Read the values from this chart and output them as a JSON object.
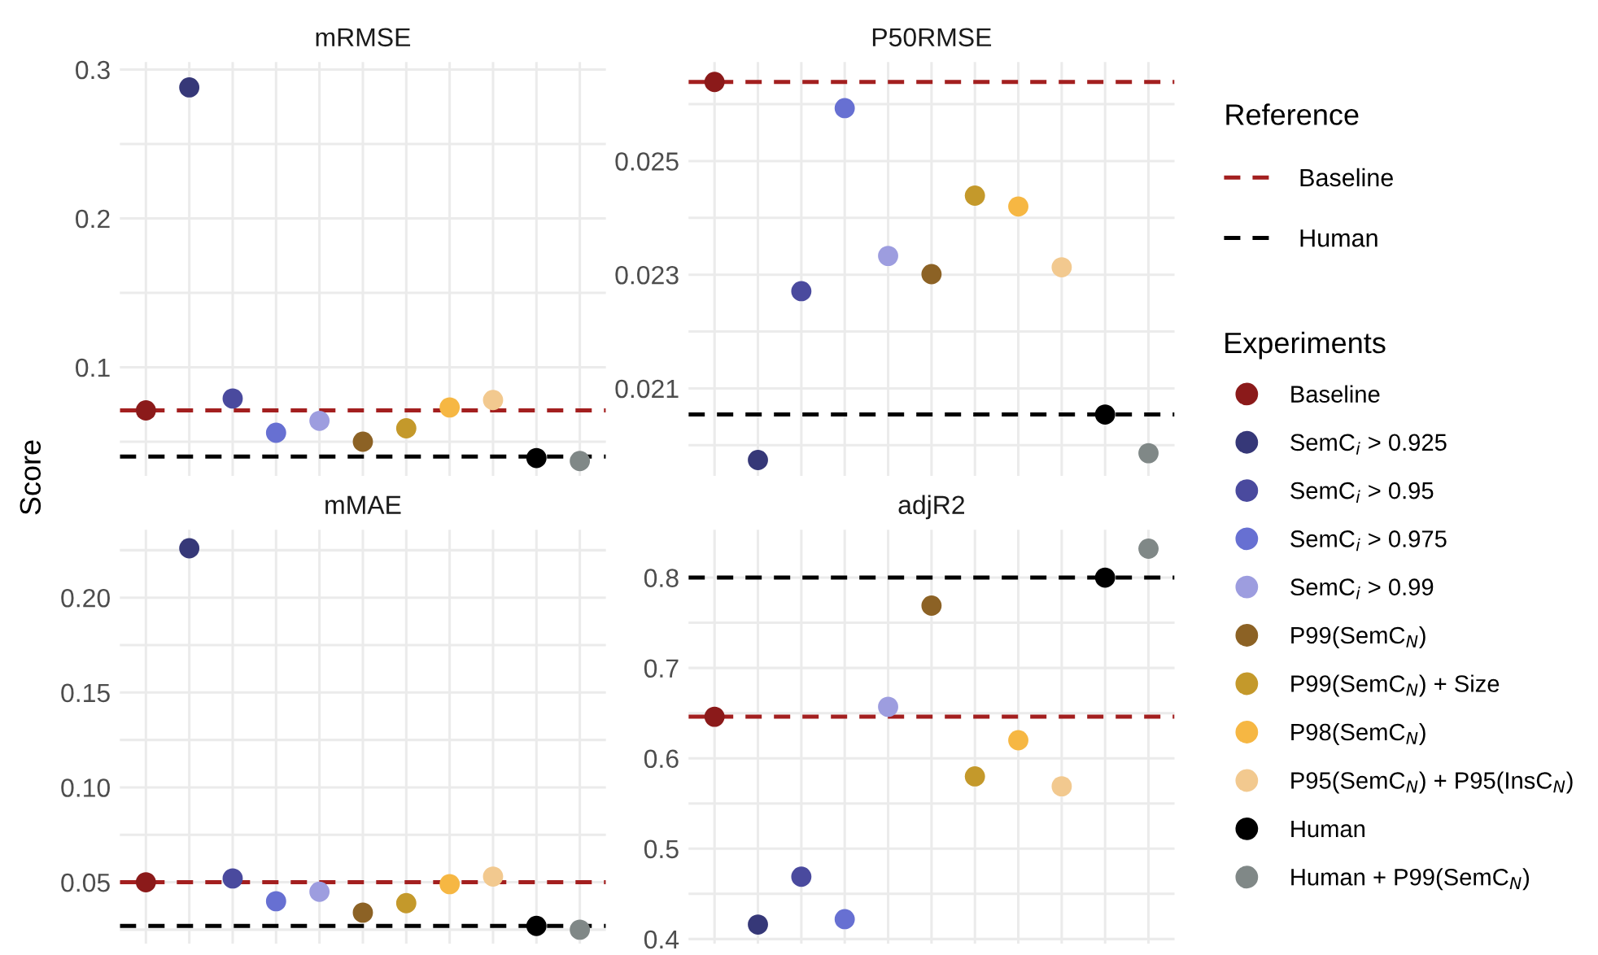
{
  "chart_data": [
    {
      "type": "scatter",
      "title": "mRMSE",
      "ylabel": "Score",
      "legend_title": "Experiments",
      "annotations": [
        "Reference"
      ],
      "legend": "right",
      "grid": true,
      "marker": "circle",
      "tick_labels": "y",
      "categories": [
        null,
        null,
        null,
        null,
        null,
        null,
        null,
        null,
        null,
        null,
        null
      ],
      "ylim": [
        0.027,
        0.305
      ],
      "yticks": [
        {
          "value": 0.05,
          "label": null
        },
        0.1,
        {
          "value": 0.15,
          "label": null
        },
        0.2,
        {
          "value": 0.25,
          "label": null
        },
        0.3
      ],
      "ref_lines": [
        {
          "axis": "y",
          "value": 0.071,
          "label": "Baseline",
          "color": "#a31f1f",
          "line_style": "dashed"
        },
        {
          "axis": "y",
          "value": 0.04,
          "label": "Human",
          "color": "#000000",
          "line_style": "dashed"
        }
      ],
      "series": [
        {
          "name": "Baseline",
          "color": "#8b1a1a",
          "values": [
            0.071,
            null,
            null,
            null,
            null,
            null,
            null,
            null,
            null,
            null,
            null
          ]
        },
        {
          "name": "SemC$_{i}$ > 0.925",
          "color": "#363878",
          "values": [
            null,
            0.288,
            null,
            null,
            null,
            null,
            null,
            null,
            null,
            null,
            null
          ]
        },
        {
          "name": "SemC$_{i}$ > 0.95",
          "color": "#4a4a9e",
          "values": [
            null,
            null,
            0.079,
            null,
            null,
            null,
            null,
            null,
            null,
            null,
            null
          ]
        },
        {
          "name": "SemC$_{i}$ > 0.975",
          "color": "#6770d2",
          "values": [
            null,
            null,
            null,
            0.056,
            null,
            null,
            null,
            null,
            null,
            null,
            null
          ]
        },
        {
          "name": "SemC$_{i}$ > 0.99",
          "color": "#9d9ddf",
          "values": [
            null,
            null,
            null,
            null,
            0.064,
            null,
            null,
            null,
            null,
            null,
            null
          ]
        },
        {
          "name": "P99(SemC$_{N}$)",
          "color": "#8c6225",
          "values": [
            null,
            null,
            null,
            null,
            null,
            0.05,
            null,
            null,
            null,
            null,
            null
          ]
        },
        {
          "name": "P99(SemC$_{N}$) + Size",
          "color": "#c4992b",
          "values": [
            null,
            null,
            null,
            null,
            null,
            null,
            0.059,
            null,
            null,
            null,
            null
          ]
        },
        {
          "name": "P98(SemC$_{N}$)",
          "color": "#f6b743",
          "values": [
            null,
            null,
            null,
            null,
            null,
            null,
            null,
            0.073,
            null,
            null,
            null
          ]
        },
        {
          "name": "P95(SemC$_{N}$) + P95(InsC$_{N}$)",
          "color": "#f2c98f",
          "values": [
            null,
            null,
            null,
            null,
            null,
            null,
            null,
            null,
            0.078,
            null,
            null
          ]
        },
        {
          "name": "Human",
          "color": "#000000",
          "values": [
            null,
            null,
            null,
            null,
            null,
            null,
            null,
            null,
            null,
            0.039,
            null
          ]
        },
        {
          "name": "Human + P99(SemC$_{N}$)",
          "color": "#808887",
          "values": [
            null,
            null,
            null,
            null,
            null,
            null,
            null,
            null,
            null,
            null,
            0.037
          ]
        }
      ]
    },
    {
      "type": "scatter",
      "title": "P50RMSE",
      "grid": true,
      "marker": "circle",
      "tick_labels": "y",
      "categories": [
        null,
        null,
        null,
        null,
        null,
        null,
        null,
        null,
        null,
        null,
        null
      ],
      "ylim": [
        0.01946,
        0.02674
      ],
      "yticks": [
        {
          "value": 0.02,
          "label": null
        },
        0.021,
        {
          "value": 0.022,
          "label": null
        },
        0.023,
        {
          "value": 0.024,
          "label": null
        },
        0.025,
        {
          "value": 0.026,
          "label": null
        }
      ],
      "ref_lines": [
        {
          "axis": "y",
          "value": 0.02639,
          "color": "#a31f1f",
          "line_style": "dashed"
        },
        {
          "axis": "y",
          "value": 0.02054,
          "color": "#000000",
          "line_style": "dashed"
        }
      ],
      "series": [
        {
          "color": "#8b1a1a",
          "values": [
            0.02639,
            null,
            null,
            null,
            null,
            null,
            null,
            null,
            null,
            null,
            null
          ]
        },
        {
          "color": "#363878",
          "values": [
            null,
            0.01974,
            null,
            null,
            null,
            null,
            null,
            null,
            null,
            null,
            null
          ]
        },
        {
          "color": "#4a4a9e",
          "values": [
            null,
            null,
            0.02271,
            null,
            null,
            null,
            null,
            null,
            null,
            null,
            null
          ]
        },
        {
          "color": "#6770d2",
          "values": [
            null,
            null,
            null,
            0.02593,
            null,
            null,
            null,
            null,
            null,
            null,
            null
          ]
        },
        {
          "color": "#9d9ddf",
          "values": [
            null,
            null,
            null,
            null,
            0.02333,
            null,
            null,
            null,
            null,
            null,
            null
          ]
        },
        {
          "color": "#8c6225",
          "values": [
            null,
            null,
            null,
            null,
            null,
            0.02301,
            null,
            null,
            null,
            null,
            null
          ]
        },
        {
          "color": "#c4992b",
          "values": [
            null,
            null,
            null,
            null,
            null,
            null,
            0.02439,
            null,
            null,
            null,
            null
          ]
        },
        {
          "color": "#f6b743",
          "values": [
            null,
            null,
            null,
            null,
            null,
            null,
            null,
            0.0242,
            null,
            null,
            null
          ]
        },
        {
          "color": "#f2c98f",
          "values": [
            null,
            null,
            null,
            null,
            null,
            null,
            null,
            null,
            0.02313,
            null,
            null
          ]
        },
        {
          "color": "#000000",
          "values": [
            null,
            null,
            null,
            null,
            null,
            null,
            null,
            null,
            null,
            0.02054,
            null
          ]
        },
        {
          "color": "#808887",
          "values": [
            null,
            null,
            null,
            null,
            null,
            null,
            null,
            null,
            null,
            null,
            0.01986
          ]
        }
      ]
    },
    {
      "type": "scatter",
      "title": "mMAE",
      "grid": true,
      "marker": "circle",
      "tick_labels": "y",
      "categories": [
        null,
        null,
        null,
        null,
        null,
        null,
        null,
        null,
        null,
        null,
        null
      ],
      "ylim": [
        0.0177,
        0.2358
      ],
      "yticks": [
        {
          "value": 0.025,
          "label": null
        },
        0.05,
        {
          "value": 0.075,
          "label": null
        },
        {
          "value": 0.1,
          "label": "0.10"
        },
        {
          "value": 0.125,
          "label": null
        },
        0.15,
        {
          "value": 0.175,
          "label": null
        },
        {
          "value": 0.2,
          "label": "0.20"
        },
        {
          "value": 0.225,
          "label": null
        }
      ],
      "ref_lines": [
        {
          "axis": "y",
          "value": 0.05,
          "color": "#a31f1f",
          "line_style": "dashed"
        },
        {
          "axis": "y",
          "value": 0.027,
          "color": "#000000",
          "line_style": "dashed"
        }
      ],
      "series": [
        {
          "color": "#8b1a1a",
          "values": [
            0.05,
            null,
            null,
            null,
            null,
            null,
            null,
            null,
            null,
            null,
            null
          ]
        },
        {
          "color": "#363878",
          "values": [
            null,
            0.226,
            null,
            null,
            null,
            null,
            null,
            null,
            null,
            null,
            null
          ]
        },
        {
          "color": "#4a4a9e",
          "values": [
            null,
            null,
            0.052,
            null,
            null,
            null,
            null,
            null,
            null,
            null,
            null
          ]
        },
        {
          "color": "#6770d2",
          "values": [
            null,
            null,
            null,
            0.04,
            null,
            null,
            null,
            null,
            null,
            null,
            null
          ]
        },
        {
          "color": "#9d9ddf",
          "values": [
            null,
            null,
            null,
            null,
            0.045,
            null,
            null,
            null,
            null,
            null,
            null
          ]
        },
        {
          "color": "#8c6225",
          "values": [
            null,
            null,
            null,
            null,
            null,
            0.034,
            null,
            null,
            null,
            null,
            null
          ]
        },
        {
          "color": "#c4992b",
          "values": [
            null,
            null,
            null,
            null,
            null,
            null,
            0.039,
            null,
            null,
            null,
            null
          ]
        },
        {
          "color": "#f6b743",
          "values": [
            null,
            null,
            null,
            null,
            null,
            null,
            null,
            0.049,
            null,
            null,
            null
          ]
        },
        {
          "color": "#f2c98f",
          "values": [
            null,
            null,
            null,
            null,
            null,
            null,
            null,
            null,
            0.053,
            null,
            null
          ]
        },
        {
          "color": "#000000",
          "values": [
            null,
            null,
            null,
            null,
            null,
            null,
            null,
            null,
            null,
            0.027,
            null
          ]
        },
        {
          "color": "#808887",
          "values": [
            null,
            null,
            null,
            null,
            null,
            null,
            null,
            null,
            null,
            null,
            0.025
          ]
        }
      ]
    },
    {
      "type": "scatter",
      "title": "adjR2",
      "grid": true,
      "marker": "circle",
      "tick_labels": "y",
      "categories": [
        null,
        null,
        null,
        null,
        null,
        null,
        null,
        null,
        null,
        null,
        null
      ],
      "ylim": [
        0.395,
        0.853
      ],
      "yticks": [
        0.4,
        {
          "value": 0.45,
          "label": null
        },
        0.5,
        {
          "value": 0.55,
          "label": null
        },
        0.6,
        {
          "value": 0.65,
          "label": null
        },
        0.7,
        {
          "value": 0.75,
          "label": null
        },
        0.8
      ],
      "ref_lines": [
        {
          "axis": "y",
          "value": 0.646,
          "color": "#a31f1f",
          "line_style": "dashed"
        },
        {
          "axis": "y",
          "value": 0.8,
          "color": "#000000",
          "line_style": "dashed"
        }
      ],
      "series": [
        {
          "color": "#8b1a1a",
          "values": [
            0.646,
            null,
            null,
            null,
            null,
            null,
            null,
            null,
            null,
            null,
            null
          ]
        },
        {
          "color": "#363878",
          "values": [
            null,
            0.416,
            null,
            null,
            null,
            null,
            null,
            null,
            null,
            null,
            null
          ]
        },
        {
          "color": "#4a4a9e",
          "values": [
            null,
            null,
            0.469,
            null,
            null,
            null,
            null,
            null,
            null,
            null,
            null
          ]
        },
        {
          "color": "#6770d2",
          "values": [
            null,
            null,
            null,
            0.422,
            null,
            null,
            null,
            null,
            null,
            null,
            null
          ]
        },
        {
          "color": "#9d9ddf",
          "values": [
            null,
            null,
            null,
            null,
            0.657,
            null,
            null,
            null,
            null,
            null,
            null
          ]
        },
        {
          "color": "#8c6225",
          "values": [
            null,
            null,
            null,
            null,
            null,
            0.769,
            null,
            null,
            null,
            null,
            null
          ]
        },
        {
          "color": "#c4992b",
          "values": [
            null,
            null,
            null,
            null,
            null,
            null,
            0.58,
            null,
            null,
            null,
            null
          ]
        },
        {
          "color": "#f6b743",
          "values": [
            null,
            null,
            null,
            null,
            null,
            null,
            null,
            0.62,
            null,
            null,
            null
          ]
        },
        {
          "color": "#f2c98f",
          "values": [
            null,
            null,
            null,
            null,
            null,
            null,
            null,
            null,
            0.569,
            null,
            null
          ]
        },
        {
          "color": "#000000",
          "values": [
            null,
            null,
            null,
            null,
            null,
            null,
            null,
            null,
            null,
            0.8,
            null
          ]
        },
        {
          "color": "#808887",
          "values": [
            null,
            null,
            null,
            null,
            null,
            null,
            null,
            null,
            null,
            null,
            0.832
          ]
        }
      ]
    }
  ]
}
